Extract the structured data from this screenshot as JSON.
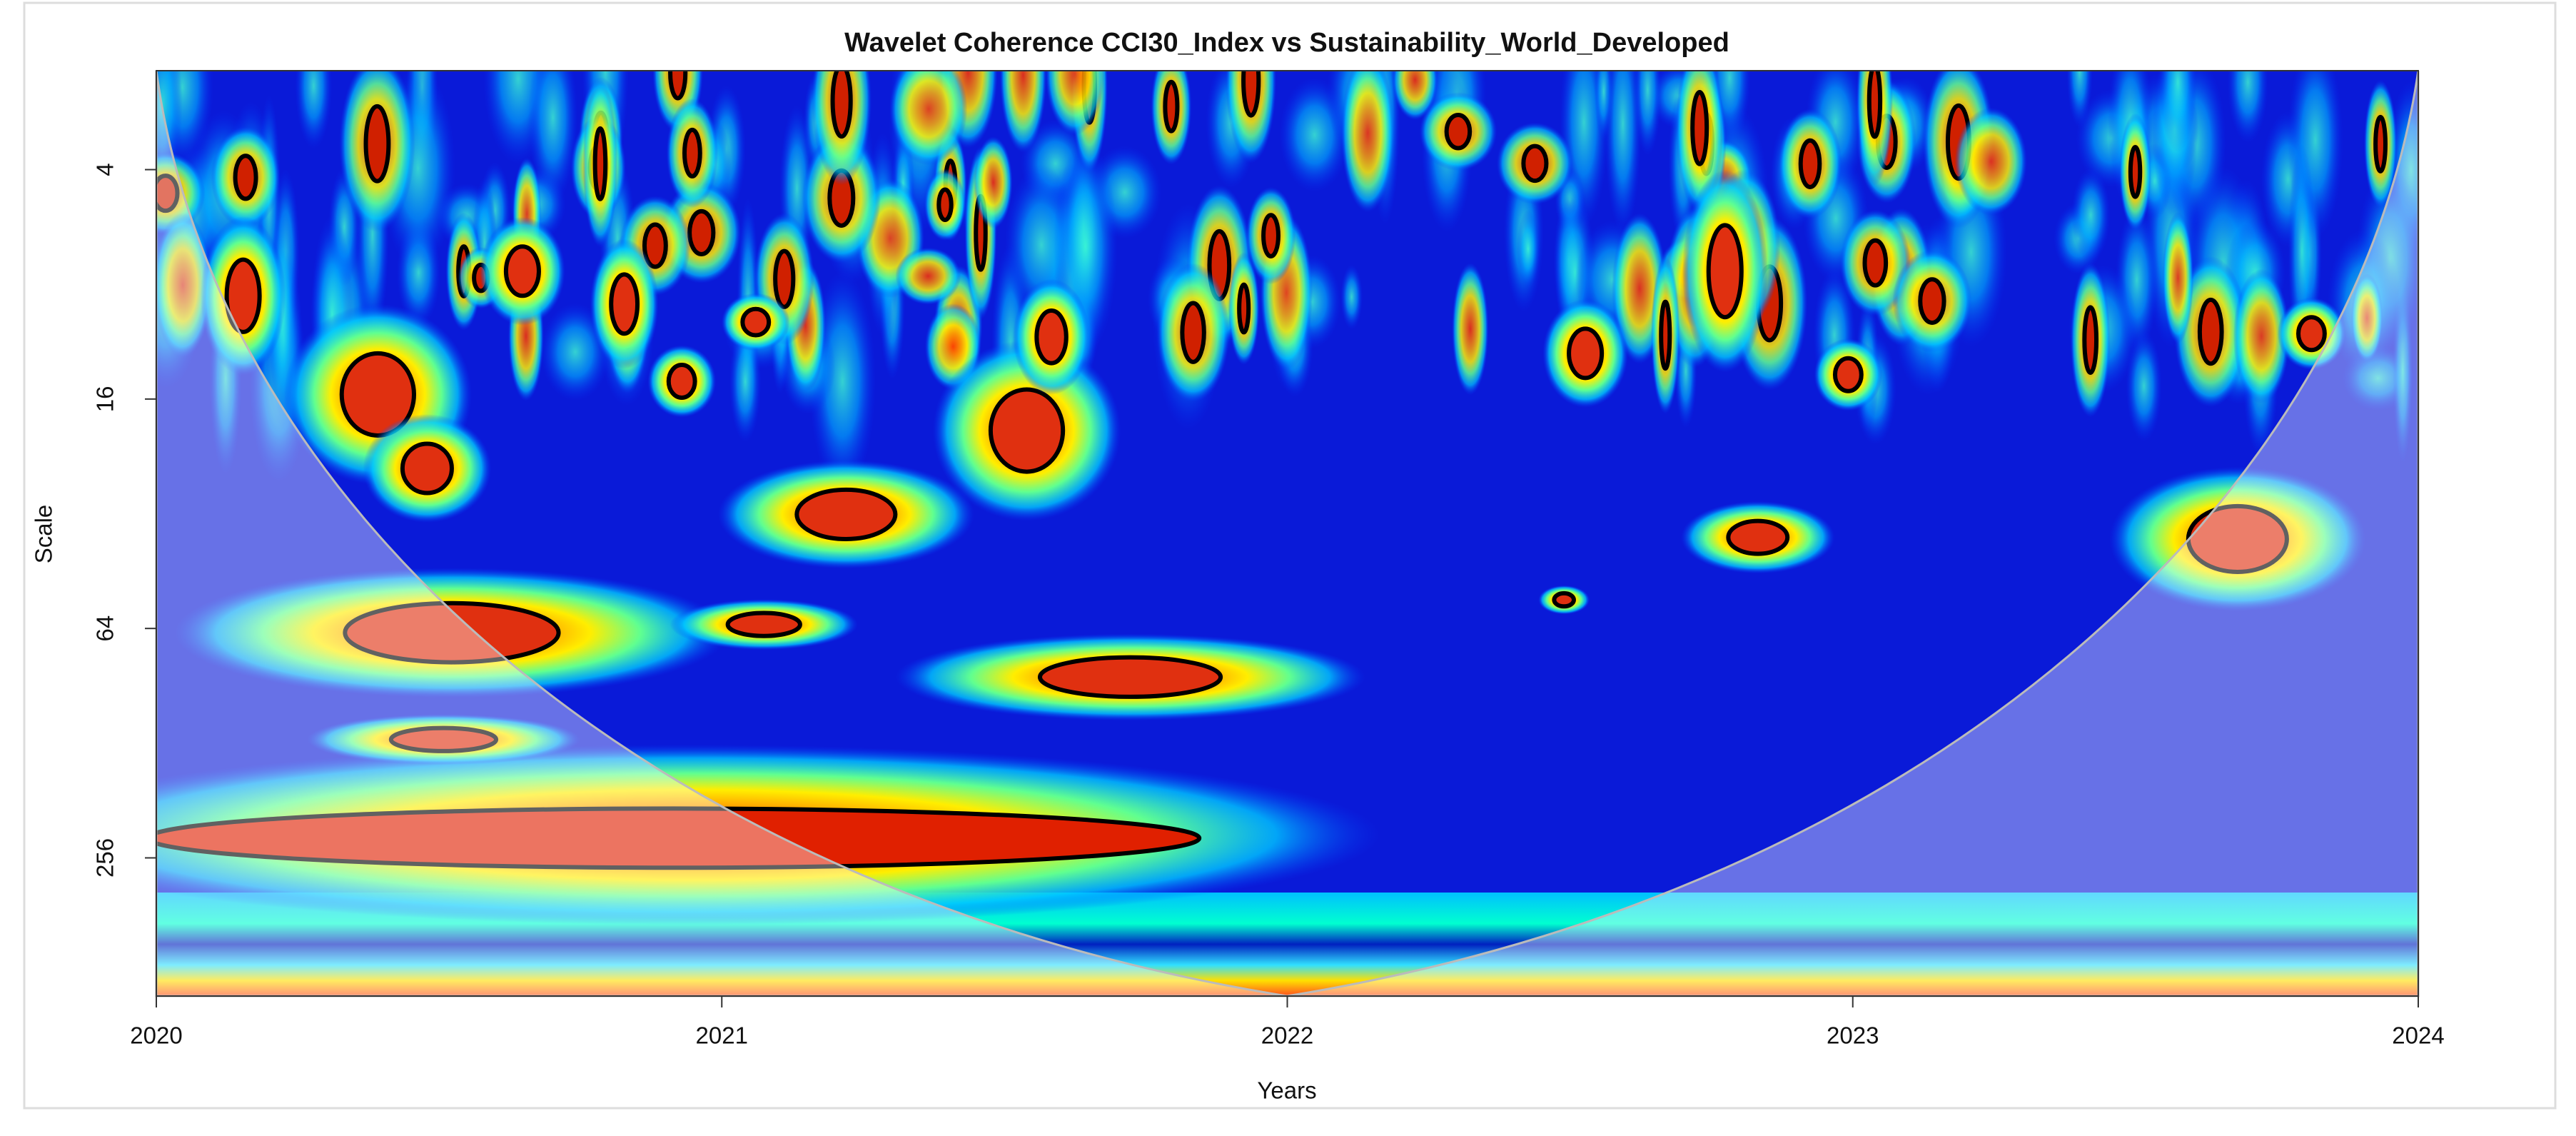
{
  "chart_data": {
    "type": "heatmap",
    "title": "Wavelet Coherence CCI30_Index vs Sustainability_World_Developed",
    "xlabel": "Years",
    "ylabel": "Scale",
    "xlim": [
      2020,
      2024
    ],
    "xticks": [
      2020,
      2021,
      2022,
      2023,
      2024
    ],
    "ylim": [
      2.2,
      590
    ],
    "yticks": [
      4,
      16,
      64,
      256
    ],
    "yscale": "log2",
    "y_inverted": true
  }
}
